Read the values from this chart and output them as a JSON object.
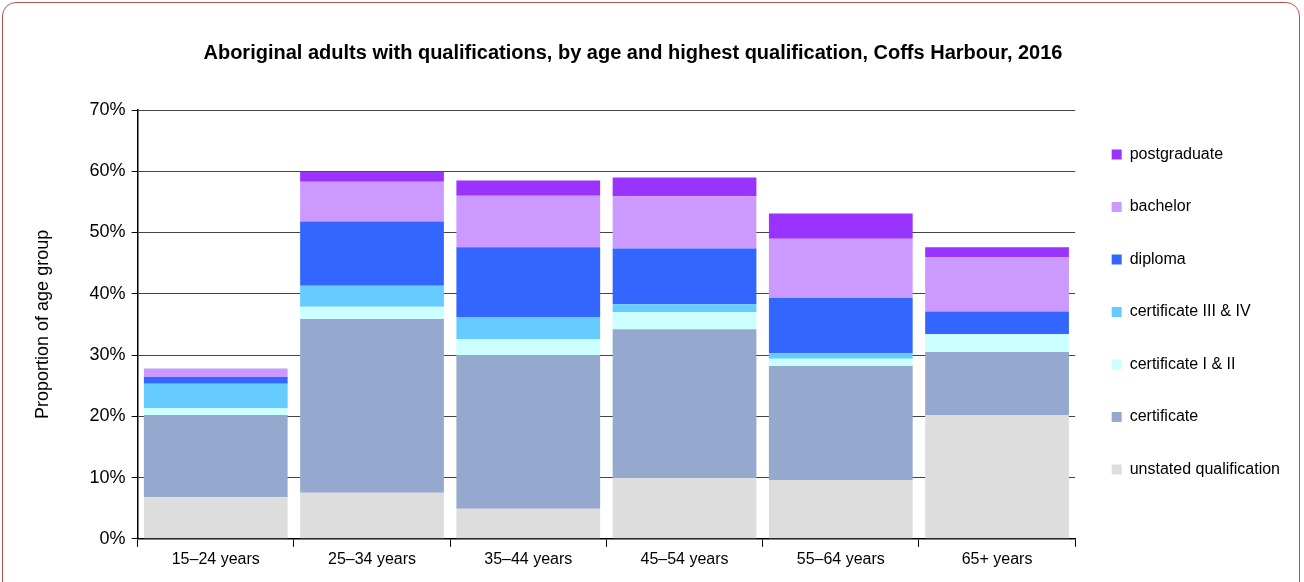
{
  "chart_data": {
    "type": "bar",
    "title": "Aboriginal adults with qualifications, by age and highest qualification, Coffs Harbour, 2016",
    "ylabel": "Proportion of age group",
    "categories": [
      "15–24 years",
      "25–34 years",
      "35–44 years",
      "45–54 years",
      "55–64 years",
      "65+ years"
    ],
    "stacked": true,
    "ylim": [
      0,
      70
    ],
    "yticks": [
      {
        "value": 0,
        "label": "0%"
      },
      {
        "value": 10,
        "label": "10%"
      },
      {
        "value": 20,
        "label": "20%"
      },
      {
        "value": 30,
        "label": "30%"
      },
      {
        "value": 40,
        "label": "40%"
      },
      {
        "value": 50,
        "label": "50%"
      },
      {
        "value": 60,
        "label": "60%"
      },
      {
        "value": 70,
        "label": "70%"
      }
    ],
    "grid": "y",
    "legend": "right",
    "series": [
      {
        "name": "unstated qualification",
        "color": "#dddddd",
        "values": [
          6.8,
          7.5,
          4.9,
          9.9,
          9.6,
          20.2
        ]
      },
      {
        "name": "certificate",
        "color": "#95a9cf",
        "values": [
          13.4,
          28.4,
          25.1,
          24.3,
          18.6,
          10.3
        ]
      },
      {
        "name": "certificate I & II",
        "color": "#ccffff",
        "values": [
          1.1,
          2.0,
          2.6,
          2.8,
          1.2,
          2.9
        ]
      },
      {
        "name": "certificate III & IV",
        "color": "#66ccff",
        "values": [
          4.0,
          3.4,
          3.6,
          1.3,
          0.9,
          0
        ]
      },
      {
        "name": "diploma",
        "color": "#3366ff",
        "values": [
          1.1,
          10.5,
          11.4,
          9.1,
          9.0,
          3.7
        ]
      },
      {
        "name": "bachelor",
        "color": "#cc99ff",
        "values": [
          1.4,
          6.5,
          8.4,
          8.5,
          9.7,
          8.9
        ]
      },
      {
        "name": "postgraduate",
        "color": "#9933ff",
        "values": [
          0,
          1.6,
          2.5,
          3.1,
          4.1,
          1.6
        ]
      }
    ]
  }
}
